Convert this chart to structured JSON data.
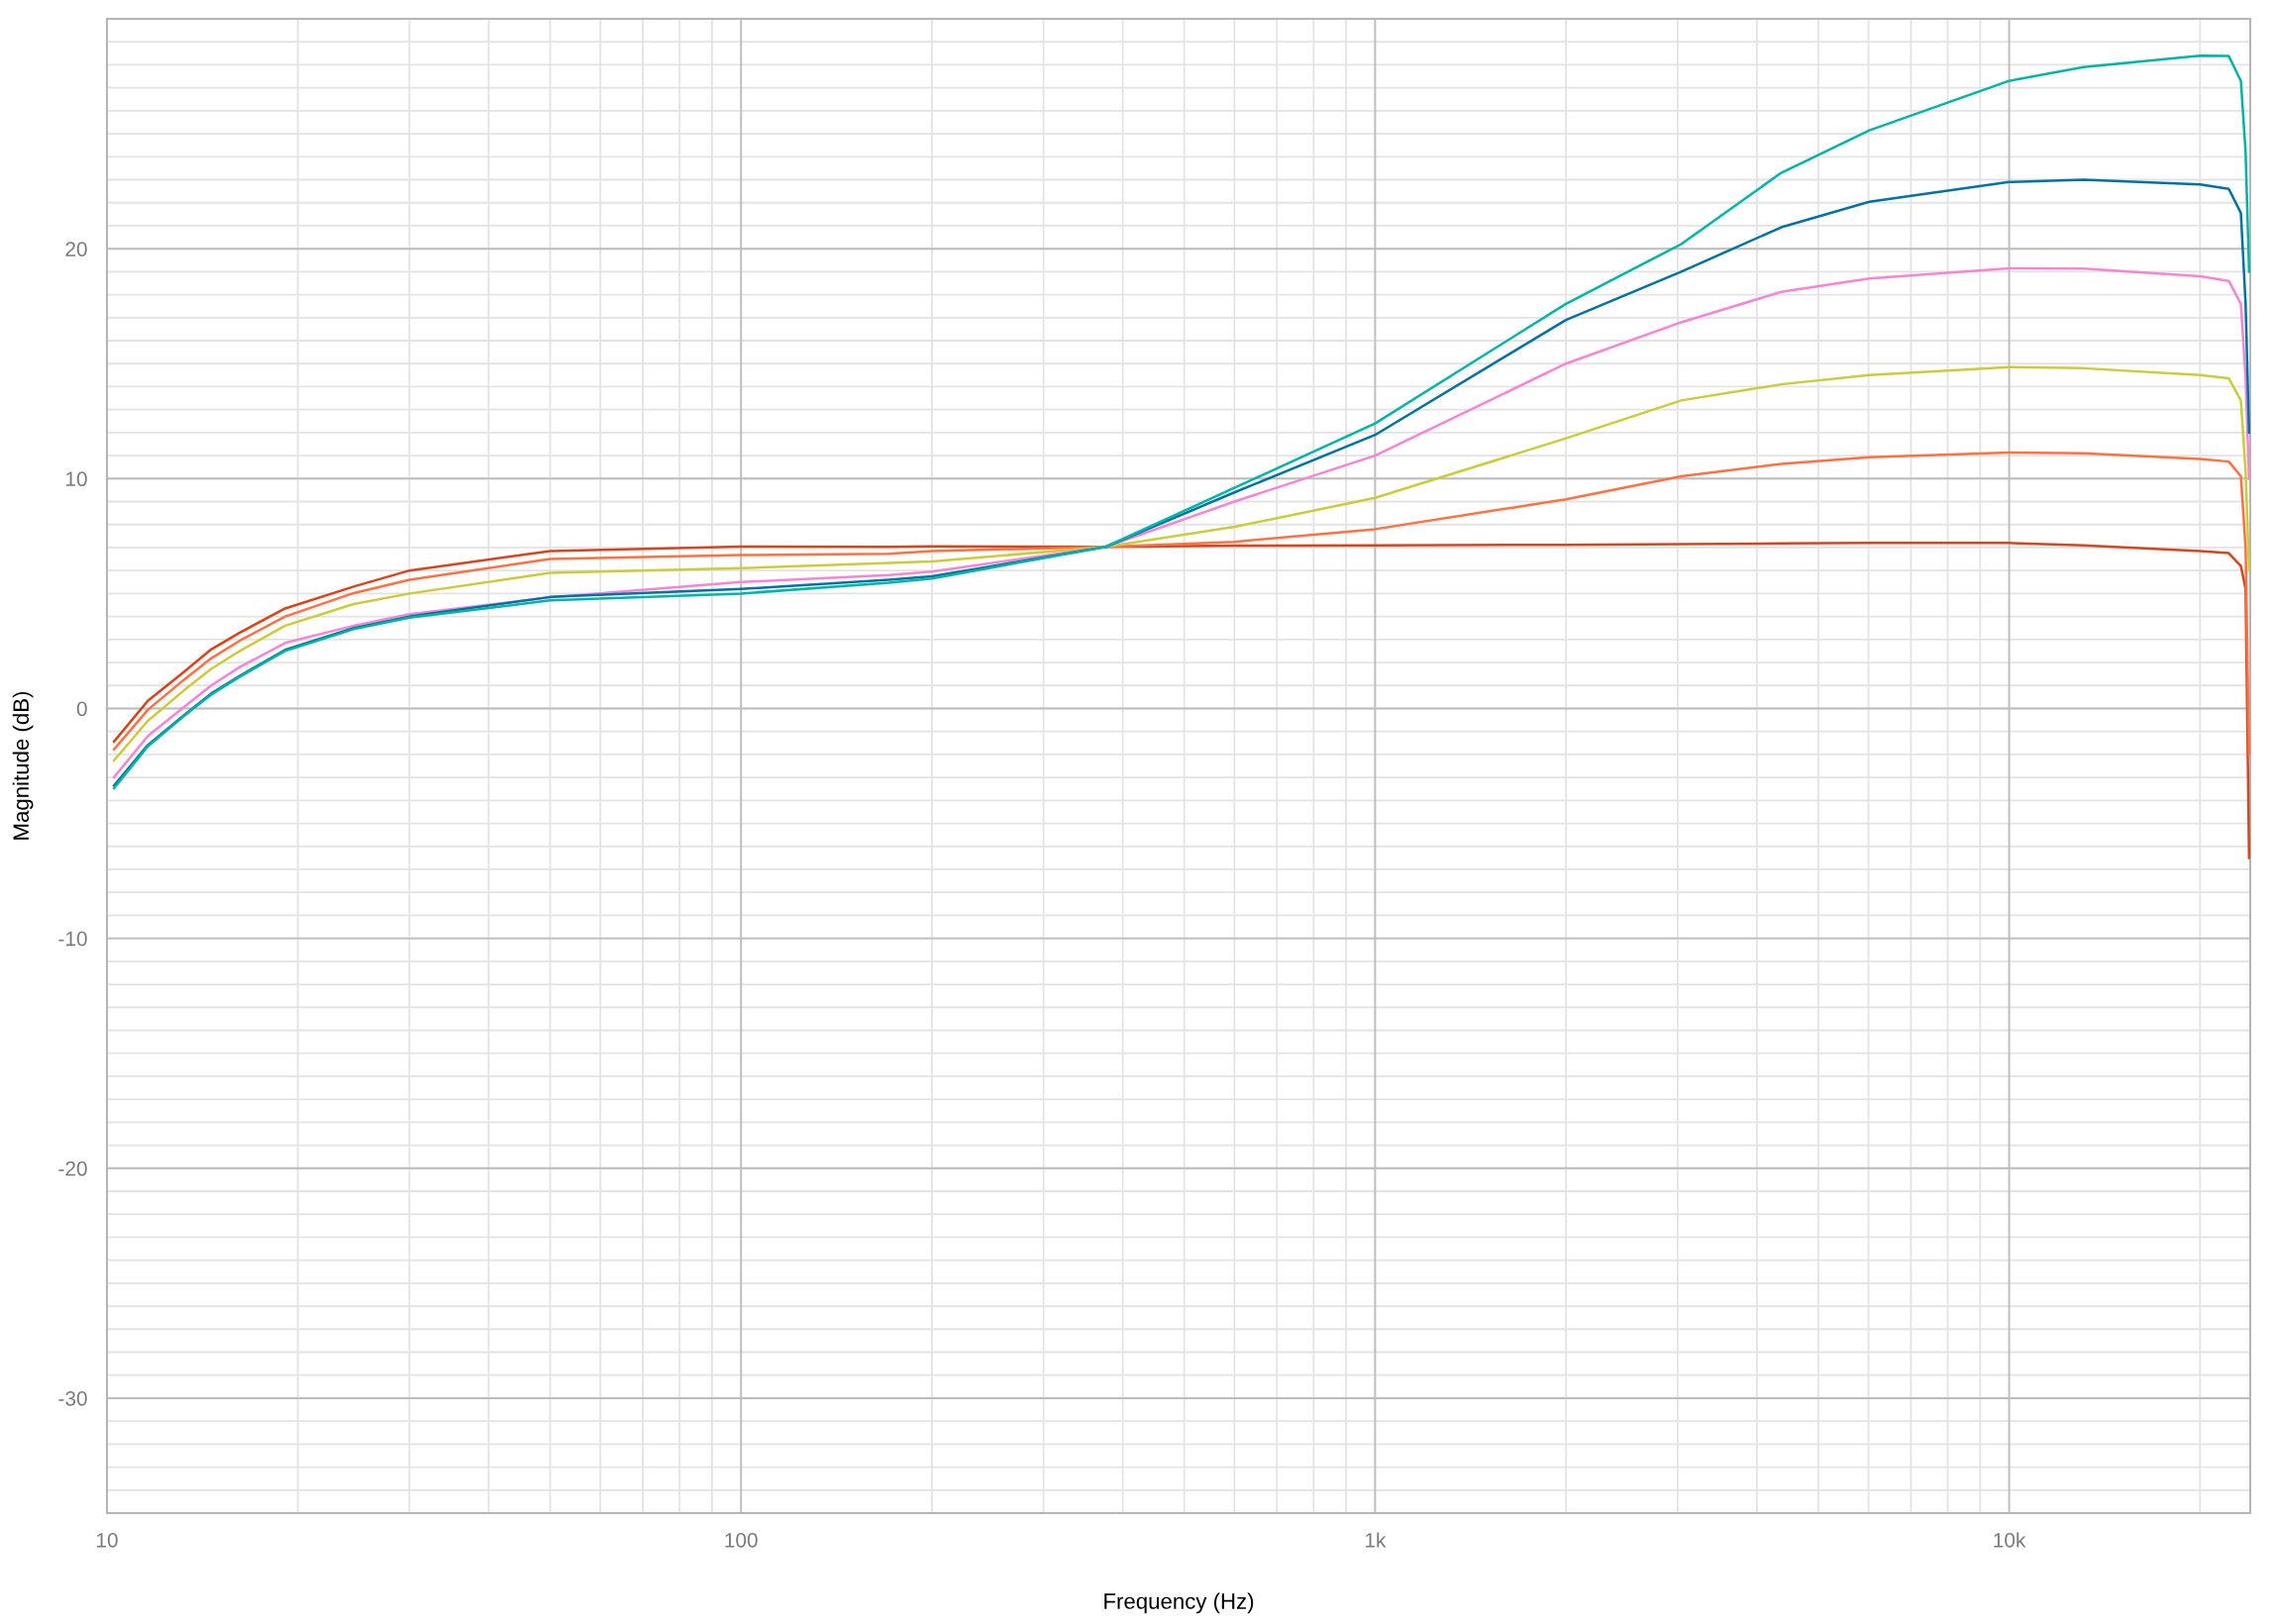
{
  "chart_data": {
    "type": "line",
    "xlabel": "Frequency (Hz)",
    "ylabel": "Magnitude (dB)",
    "log": "x",
    "grid": true,
    "marker": "none",
    "line_style": "solid",
    "x": [
      10.26,
      11.6,
      13.2,
      14.6,
      16.2,
      19.1,
      24.5,
      30,
      50,
      100,
      171,
      200,
      376,
      600,
      1000,
      2000,
      3040,
      4370,
      6020,
      10000,
      13100,
      20000,
      22200,
      23200,
      23600,
      23900
    ],
    "xlim": [
      10,
      24000
    ],
    "xticks": [
      {
        "value": 10,
        "label": "10"
      },
      {
        "value": 100,
        "label": "100"
      },
      {
        "value": 1000,
        "label": "1k"
      },
      {
        "value": 10000,
        "label": "10k"
      }
    ],
    "ylim": [
      -35,
      30
    ],
    "yticks": [
      -30,
      -20,
      -10,
      0,
      10,
      20
    ],
    "series": [
      {
        "color": "#d9441a",
        "values": [
          -1.44,
          0.33,
          1.57,
          2.57,
          3.3,
          4.35,
          5.3,
          6.0,
          6.85,
          7.04,
          7.03,
          7.05,
          7.03,
          7.08,
          7.1,
          7.12,
          7.15,
          7.18,
          7.2,
          7.2,
          7.1,
          6.85,
          6.76,
          6.2,
          5.2,
          -6.5
        ]
      },
      {
        "color": "#ff7043",
        "values": [
          -1.78,
          -0.06,
          1.23,
          2.18,
          2.95,
          4.0,
          5.02,
          5.6,
          6.5,
          6.67,
          6.73,
          6.85,
          7.03,
          7.25,
          7.8,
          9.1,
          10.1,
          10.64,
          10.93,
          11.13,
          11.1,
          10.85,
          10.74,
          10.1,
          7.0,
          -2
        ]
      },
      {
        "color": "#cccc3a",
        "values": [
          -2.26,
          -0.54,
          0.77,
          1.72,
          2.5,
          3.6,
          4.54,
          5.0,
          5.9,
          6.1,
          6.33,
          6.4,
          7.03,
          7.9,
          9.16,
          11.75,
          13.4,
          14.1,
          14.5,
          14.85,
          14.8,
          14.5,
          14.36,
          13.4,
          10.3,
          6
        ]
      },
      {
        "color": "#f784d6",
        "values": [
          -2.99,
          -1.2,
          0.04,
          1.0,
          1.8,
          2.85,
          3.6,
          4.1,
          4.83,
          5.5,
          5.8,
          5.95,
          7.03,
          9.0,
          11.0,
          15.0,
          16.8,
          18.12,
          18.7,
          19.15,
          19.13,
          18.8,
          18.6,
          17.6,
          14.36,
          10
        ]
      },
      {
        "color": "#0072a3",
        "values": [
          -3.35,
          -1.59,
          -0.31,
          0.65,
          1.42,
          2.55,
          3.5,
          4.0,
          4.85,
          5.2,
          5.6,
          5.75,
          7.03,
          9.4,
          11.9,
          16.9,
          19.0,
          20.93,
          22.04,
          22.9,
          23.0,
          22.8,
          22.6,
          21.55,
          17.6,
          12
        ]
      },
      {
        "color": "#00b5a8",
        "values": [
          -3.47,
          -1.65,
          -0.35,
          0.6,
          1.38,
          2.5,
          3.45,
          3.95,
          4.7,
          5.0,
          5.47,
          5.65,
          7.03,
          9.6,
          12.4,
          17.6,
          20.2,
          23.3,
          25.15,
          27.3,
          27.9,
          28.4,
          28.38,
          27.3,
          24.2,
          19
        ]
      }
    ]
  }
}
